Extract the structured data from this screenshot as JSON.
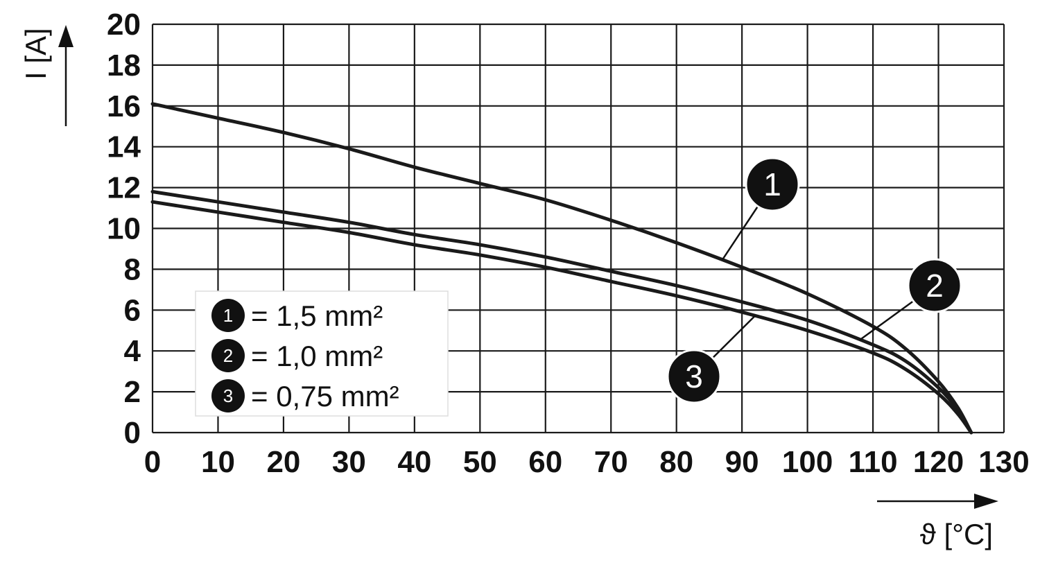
{
  "chart_data": {
    "type": "line",
    "xlabel": "ϑ [°C]",
    "ylabel": "I [A]",
    "xlim": [
      0,
      130
    ],
    "ylim": [
      0,
      20
    ],
    "x_ticks": [
      "0",
      "10",
      "20",
      "30",
      "40",
      "50",
      "60",
      "70",
      "80",
      "90",
      "100",
      "110",
      "120",
      "130"
    ],
    "y_ticks": [
      "0",
      "2",
      "4",
      "6",
      "8",
      "10",
      "12",
      "14",
      "16",
      "18",
      "20"
    ],
    "grid": true,
    "legend": [
      {
        "marker": "1",
        "label": "= 1,5 mm²"
      },
      {
        "marker": "2",
        "label": "= 1,0 mm²"
      },
      {
        "marker": "3",
        "label": "= 0,75 mm²"
      }
    ],
    "series": [
      {
        "name": "1",
        "x": [
          0,
          10,
          20,
          30,
          40,
          50,
          60,
          70,
          80,
          90,
          100,
          110,
          115,
          120,
          123,
          125
        ],
        "y": [
          16.1,
          15.4,
          14.7,
          13.9,
          13.0,
          12.2,
          11.4,
          10.4,
          9.3,
          8.1,
          6.8,
          5.2,
          4.1,
          2.5,
          1.2,
          0.0
        ]
      },
      {
        "name": "2",
        "x": [
          0,
          10,
          20,
          30,
          40,
          50,
          60,
          70,
          80,
          90,
          100,
          110,
          115,
          120,
          123,
          125
        ],
        "y": [
          11.8,
          11.3,
          10.8,
          10.3,
          9.7,
          9.2,
          8.6,
          7.9,
          7.2,
          6.4,
          5.5,
          4.3,
          3.5,
          2.2,
          1.1,
          0.0
        ]
      },
      {
        "name": "3",
        "x": [
          0,
          10,
          20,
          30,
          40,
          50,
          60,
          70,
          80,
          90,
          100,
          110,
          115,
          120,
          123,
          125
        ],
        "y": [
          11.3,
          10.8,
          10.3,
          9.8,
          9.2,
          8.7,
          8.1,
          7.4,
          6.7,
          5.9,
          5.0,
          3.9,
          3.1,
          1.9,
          0.9,
          0.0
        ]
      }
    ],
    "callouts": [
      {
        "marker": "1",
        "series": "1",
        "at_x": 87
      },
      {
        "marker": "2",
        "series": "2",
        "at_x": 108
      },
      {
        "marker": "3",
        "series": "3",
        "at_x": 92
      }
    ],
    "colors": {
      "line": "#1a1a1a",
      "grid": "#1a1a1a",
      "badge": "#111111",
      "legend_border": "#dddddd"
    }
  }
}
